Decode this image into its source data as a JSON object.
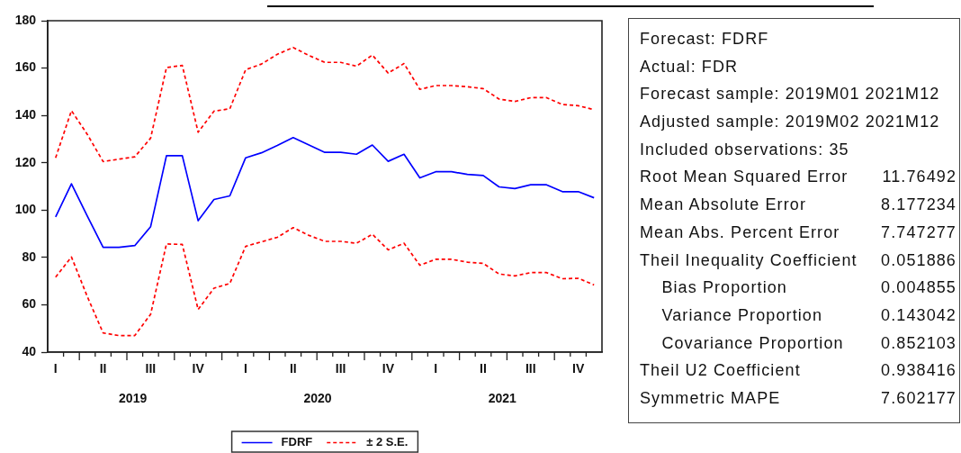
{
  "chart_data": [
    {
      "type": "line",
      "categories": [
        "I",
        null,
        null,
        "II",
        null,
        null,
        "III",
        null,
        null,
        "IV",
        null,
        null,
        "I",
        null,
        null,
        "II",
        null,
        null,
        "III",
        null,
        null,
        "IV",
        null,
        null,
        "I",
        null,
        null,
        "II",
        null,
        null,
        "III",
        null,
        null,
        "IV",
        null
      ],
      "series": [
        {
          "name": "FDRF",
          "color": "#0000ff",
          "line_style": "solid",
          "values": [
            97.1,
            111.1,
            97.5,
            84.3,
            84.3,
            85.0,
            93.0,
            123.0,
            123.0,
            95.5,
            104.5,
            106.0,
            122.1,
            124.2,
            127.3,
            130.6,
            127.5,
            124.4,
            124.4,
            123.6,
            127.5,
            120.6,
            123.6,
            113.6,
            116.2,
            116.2,
            115.1,
            114.6,
            109.8,
            109.1,
            110.7,
            110.7,
            107.8,
            107.8,
            105.2
          ]
        },
        {
          "name": "± 2 S.E.",
          "color": "#ff0000",
          "line_style": "dashed",
          "values": [
            122.1,
            142.0,
            132.0,
            120.5,
            121.5,
            122.5,
            130.4,
            160.2,
            161.1,
            132.9,
            141.8,
            142.8,
            159.3,
            161.7,
            165.8,
            168.7,
            165.3,
            162.4,
            162.4,
            160.8,
            165.5,
            157.9,
            161.9,
            151.0,
            152.6,
            152.6,
            152.1,
            151.3,
            146.9,
            145.9,
            147.5,
            147.5,
            144.6,
            144.1,
            142.4
          ]
        },
        {
          "color": "#ff0000",
          "line_style": "dashed",
          "values": [
            71.7,
            80.2,
            63.5,
            48.1,
            47.0,
            47.0,
            56.0,
            85.7,
            85.5,
            58.0,
            67.0,
            69.0,
            84.7,
            86.6,
            88.5,
            92.6,
            89.3,
            86.8,
            86.8,
            86.0,
            89.8,
            83.2,
            86.0,
            76.7,
            79.2,
            79.2,
            78.0,
            77.5,
            73.0,
            72.2,
            73.6,
            73.6,
            71.0,
            71.2,
            68.4
          ]
        }
      ],
      "ylim": [
        40,
        180
      ],
      "yticks": [
        40,
        60,
        80,
        100,
        120,
        140,
        160,
        180
      ],
      "grid": false,
      "legend": "bottom",
      "marker": "none",
      "annotations": [
        "2019",
        "2020",
        "2021"
      ]
    },
    {
      "type": "other",
      "annotations": [
        "Forecast: FDRF",
        "Actual: FDR",
        "Forecast sample: 2019M01 2021M12",
        "Adjusted sample: 2019M02 2021M12",
        "Included observations: 35"
      ],
      "categories": [
        "Root Mean Squared Error",
        "Mean Absolute Error",
        "Mean Abs. Percent Error",
        "Theil Inequality Coefficient",
        "    Bias Proportion",
        "    Variance Proportion",
        "    Covariance Proportion",
        "Theil U2 Coefficient",
        "Symmetric MAPE"
      ],
      "values": [
        11.76492,
        8.177234,
        7.747277,
        0.051886,
        0.004855,
        0.143042,
        0.852103,
        0.938416,
        7.602177
      ],
      "data_labels": true
    }
  ]
}
